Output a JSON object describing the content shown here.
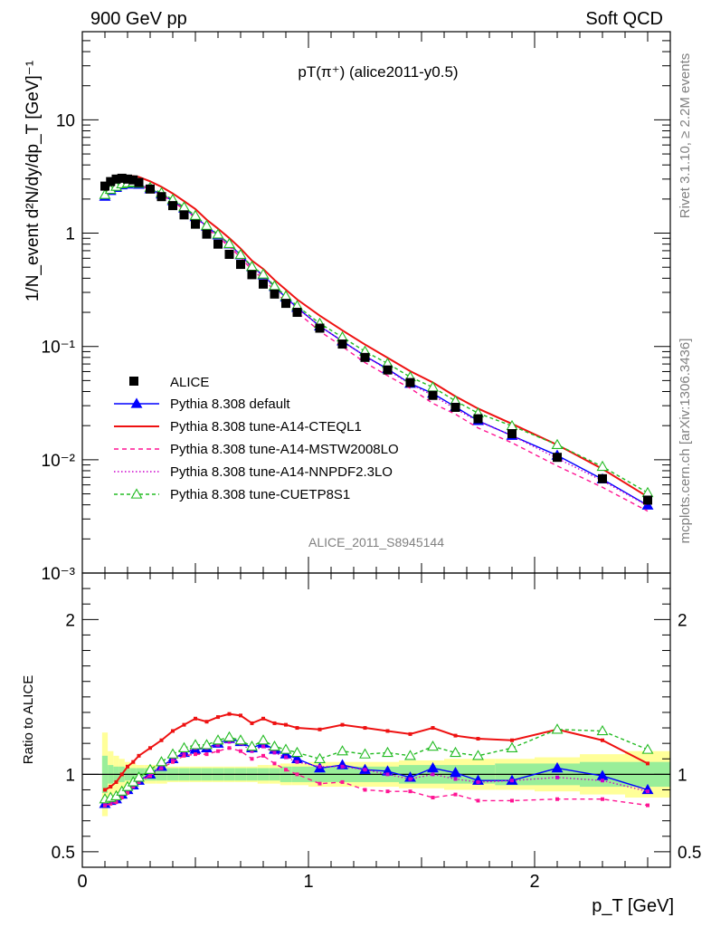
{
  "header": {
    "left": "900 GeV pp",
    "right": "Soft QCD",
    "rivet": "Rivet 3.1.10, ≥ 2.2M events",
    "mcplots": "mcplots.cern.ch [arXiv:1306.3436]",
    "analysis": "ALICE_2011_S8945144"
  },
  "chart_data": {
    "type": "line",
    "title": "pT(π⁺) (alice2011-y0.5)",
    "main": {
      "ylabel": "1/N_event d²N/dy/dp_T [GeV]⁻¹",
      "yscale": "log",
      "ylim": [
        0.001,
        60
      ],
      "yticks": [
        "10⁻³",
        "10⁻²",
        "10⁻¹",
        "1",
        "10"
      ]
    },
    "ratio": {
      "ylabel": "Ratio to ALICE",
      "ylim": [
        0.4,
        2.3
      ],
      "yticks": [
        "0.5",
        "1",
        "2"
      ]
    },
    "xlabel": "p_T [GeV]",
    "xlim": [
      0,
      2.6
    ],
    "xticks": [
      "0",
      "1",
      "2"
    ],
    "legend_position": "lower-left",
    "x": [
      0.1,
      0.125,
      0.15,
      0.175,
      0.2,
      0.225,
      0.25,
      0.3,
      0.35,
      0.4,
      0.45,
      0.5,
      0.55,
      0.6,
      0.65,
      0.7,
      0.75,
      0.8,
      0.85,
      0.9,
      0.95,
      1.05,
      1.15,
      1.25,
      1.35,
      1.45,
      1.55,
      1.65,
      1.75,
      1.9,
      2.1,
      2.3,
      2.5
    ],
    "data": {
      "name": "ALICE",
      "color": "#000000",
      "values": [
        2.6,
        2.85,
        3.0,
        3.05,
        3.0,
        2.95,
        2.8,
        2.45,
        2.1,
        1.75,
        1.45,
        1.2,
        0.98,
        0.8,
        0.65,
        0.53,
        0.43,
        0.355,
        0.29,
        0.24,
        0.2,
        0.145,
        0.105,
        0.08,
        0.062,
        0.048,
        0.037,
        0.029,
        0.023,
        0.017,
        0.0105,
        0.0068,
        0.0044
      ],
      "band_inner": [
        0.12,
        0.06,
        0.05,
        0.05,
        0.04,
        0.04,
        0.04,
        0.04,
        0.04,
        0.04,
        0.04,
        0.04,
        0.04,
        0.04,
        0.04,
        0.04,
        0.04,
        0.04,
        0.04,
        0.05,
        0.05,
        0.05,
        0.05,
        0.05,
        0.05,
        0.06,
        0.06,
        0.06,
        0.06,
        0.07,
        0.07,
        0.08,
        0.08
      ],
      "band_outer": [
        0.27,
        0.15,
        0.12,
        0.1,
        0.08,
        0.07,
        0.06,
        0.06,
        0.06,
        0.05,
        0.05,
        0.05,
        0.05,
        0.05,
        0.05,
        0.05,
        0.05,
        0.06,
        0.06,
        0.07,
        0.07,
        0.08,
        0.08,
        0.08,
        0.08,
        0.09,
        0.09,
        0.1,
        0.1,
        0.1,
        0.11,
        0.13,
        0.15
      ]
    },
    "series": [
      {
        "name": "Pythia 8.308 default",
        "color": "#0000ff",
        "dash": "",
        "marker": "triangle-filled",
        "ratio": [
          0.81,
          0.83,
          0.84,
          0.87,
          0.9,
          0.93,
          0.96,
          1.0,
          1.05,
          1.1,
          1.14,
          1.16,
          1.17,
          1.2,
          1.23,
          1.21,
          1.17,
          1.2,
          1.16,
          1.13,
          1.1,
          1.04,
          1.06,
          1.03,
          1.02,
          0.98,
          1.04,
          1.01,
          0.96,
          0.96,
          1.04,
          0.99,
          0.9
        ]
      },
      {
        "name": "Pythia 8.308 tune-A14-CTEQL1",
        "color": "#ee1111",
        "dash": "",
        "marker": "dot",
        "ratio": [
          0.9,
          0.92,
          0.95,
          1.0,
          1.05,
          1.08,
          1.12,
          1.17,
          1.22,
          1.28,
          1.32,
          1.36,
          1.34,
          1.37,
          1.39,
          1.38,
          1.33,
          1.36,
          1.33,
          1.32,
          1.3,
          1.29,
          1.32,
          1.3,
          1.28,
          1.26,
          1.3,
          1.25,
          1.23,
          1.22,
          1.29,
          1.22,
          1.07
        ]
      },
      {
        "name": "Pythia 8.308 tune-A14-MSTW2008LO",
        "color": "#ff1493",
        "dash": "5,4",
        "marker": "dot",
        "ratio": [
          0.8,
          0.81,
          0.82,
          0.85,
          0.88,
          0.92,
          0.95,
          0.99,
          1.04,
          1.08,
          1.12,
          1.13,
          1.13,
          1.15,
          1.17,
          1.15,
          1.1,
          1.12,
          1.07,
          1.03,
          1.0,
          0.94,
          0.95,
          0.9,
          0.89,
          0.89,
          0.85,
          0.87,
          0.83,
          0.83,
          0.84,
          0.84,
          0.8
        ]
      },
      {
        "name": "Pythia 8.308 tune-A14-NNPDF2.3LO",
        "color": "#cc00cc",
        "dash": "1.5,2.5",
        "marker": "dot",
        "ratio": [
          0.81,
          0.82,
          0.84,
          0.87,
          0.9,
          0.93,
          0.96,
          1.0,
          1.05,
          1.1,
          1.14,
          1.17,
          1.17,
          1.19,
          1.21,
          1.2,
          1.15,
          1.18,
          1.14,
          1.11,
          1.08,
          1.05,
          1.05,
          1.03,
          1.0,
          0.97,
          1.0,
          0.97,
          0.95,
          0.96,
          0.98,
          0.96,
          0.89
        ]
      },
      {
        "name": "Pythia 8.308 tune-CUETP8S1",
        "color": "#22bb22",
        "dash": "4,3",
        "marker": "triangle-open",
        "ratio": [
          0.84,
          0.85,
          0.86,
          0.89,
          0.92,
          0.95,
          0.98,
          1.03,
          1.08,
          1.13,
          1.17,
          1.19,
          1.19,
          1.22,
          1.24,
          1.22,
          1.18,
          1.22,
          1.18,
          1.16,
          1.14,
          1.1,
          1.15,
          1.13,
          1.14,
          1.12,
          1.18,
          1.14,
          1.12,
          1.17,
          1.29,
          1.28,
          1.16
        ]
      }
    ]
  }
}
